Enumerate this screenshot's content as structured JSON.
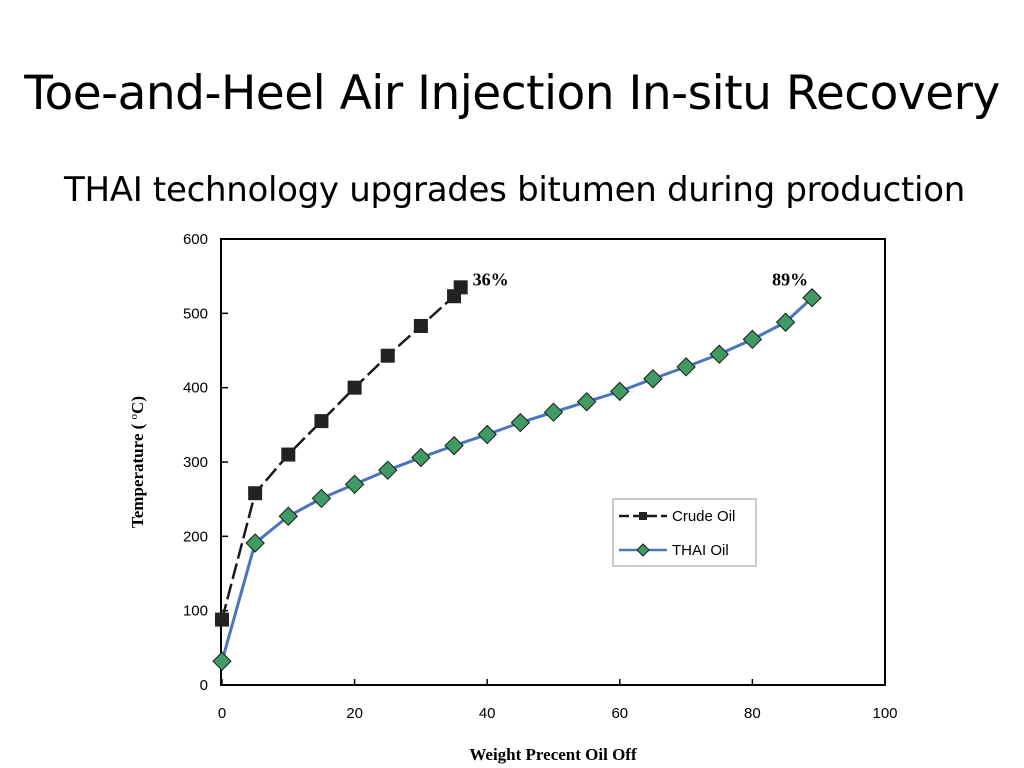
{
  "slide": {
    "title": "Toe-and-Heel Air Injection In-situ Recovery",
    "subtitle": "THAI technology upgrades bitumen during production"
  },
  "chart_data": {
    "type": "line",
    "title": "",
    "xlabel": "Weight Precent Oil Off",
    "ylabel_main": "Temperature ( ",
    "ylabel_sup": "o",
    "ylabel_tail": "C)",
    "xlim": [
      0,
      100
    ],
    "ylim": [
      0,
      600
    ],
    "xticks": [
      0,
      20,
      40,
      60,
      80,
      100
    ],
    "yticks": [
      0,
      100,
      200,
      300,
      400,
      500,
      600
    ],
    "grid": false,
    "legend_position": "lower-right",
    "series": [
      {
        "name": "Crude Oil",
        "color": "#1a1a1a",
        "line_style": "dashed",
        "marker": "square",
        "x": [
          0,
          5,
          10,
          15,
          20,
          25,
          30,
          35,
          36
        ],
        "y": [
          88,
          258,
          310,
          355,
          400,
          443,
          483,
          523,
          535
        ]
      },
      {
        "name": "THAI Oil",
        "color": "#4a76c0",
        "line_style": "solid",
        "marker": "diamond",
        "marker_color": "#3f9a63",
        "x": [
          0,
          5,
          10,
          15,
          20,
          25,
          30,
          35,
          40,
          45,
          50,
          55,
          60,
          65,
          70,
          75,
          80,
          85,
          89
        ],
        "y": [
          32,
          191,
          227,
          251,
          270,
          289,
          306,
          322,
          337,
          353,
          367,
          381,
          395,
          412,
          428,
          445,
          465,
          488,
          521
        ]
      }
    ],
    "annotations": [
      {
        "text": "36%",
        "x": 36,
        "y": 535
      },
      {
        "text": "89%",
        "x": 89,
        "y": 521
      }
    ]
  }
}
